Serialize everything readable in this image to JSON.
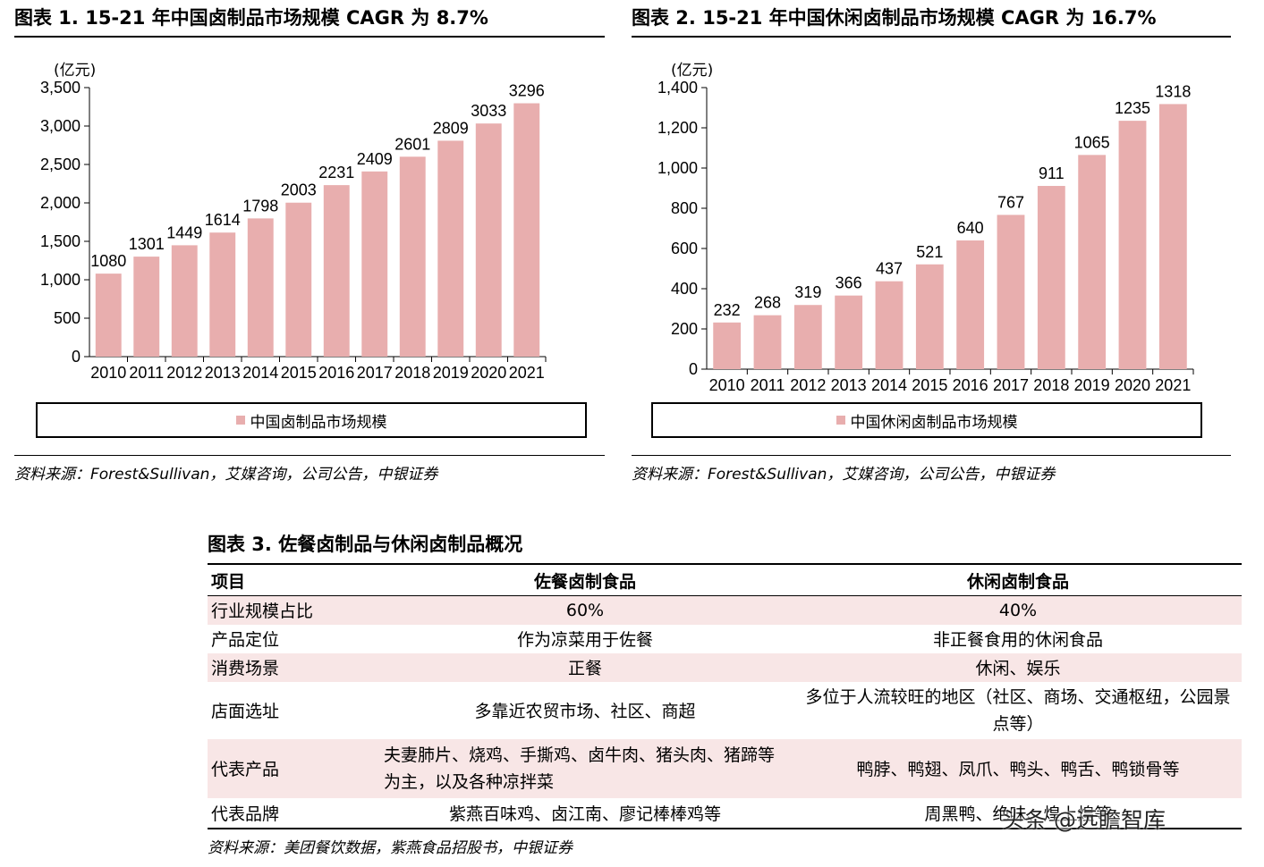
{
  "charts": [
    {
      "title": "图表 1. 15-21 年中国卤制品市场规模 CAGR 为 8.7%",
      "unit": "(亿元)",
      "yticks": [
        "3,500",
        "3,000",
        "2,500",
        "2,000",
        "1,500",
        "1,000",
        "500",
        "0"
      ],
      "legend": "中国卤制品市场规模",
      "source": "资料来源：Forest&Sullivan，艾媒咨询，公司公告，中银证券"
    },
    {
      "title": "图表 2. 15-21 年中国休闲卤制品市场规模 CAGR 为 16.7%",
      "unit": "(亿元)",
      "yticks": [
        "1,400",
        "1,200",
        "1,000",
        "800",
        "600",
        "400",
        "200",
        "0"
      ],
      "legend": "中国休闲卤制品市场规模",
      "source": "资料来源：Forest&Sullivan，艾媒咨询，公司公告，中银证券"
    }
  ],
  "chart_data": [
    {
      "type": "bar",
      "title": "图表 1. 15-21 年中国卤制品市场规模 CAGR 为 8.7%",
      "categories": [
        "2010",
        "2011",
        "2012",
        "2013",
        "2014",
        "2015",
        "2016",
        "2017",
        "2018",
        "2019",
        "2020",
        "2021"
      ],
      "values": [
        1080,
        1301,
        1449,
        1614,
        1798,
        2003,
        2231,
        2409,
        2601,
        2809,
        3033,
        3296
      ],
      "ylim": [
        0,
        3500
      ],
      "ylabel": "(亿元)",
      "xlabel": "",
      "legend": "中国卤制品市场规模",
      "color": "#e8aeae"
    },
    {
      "type": "bar",
      "title": "图表 2. 15-21 年中国休闲卤制品市场规模 CAGR 为 16.7%",
      "categories": [
        "2010",
        "2011",
        "2012",
        "2013",
        "2014",
        "2015",
        "2016",
        "2017",
        "2018",
        "2019",
        "2020",
        "2021"
      ],
      "values": [
        232,
        268,
        319,
        366,
        437,
        521,
        640,
        767,
        911,
        1065,
        1235,
        1318
      ],
      "ylim": [
        0,
        1400
      ],
      "ylabel": "(亿元)",
      "xlabel": "",
      "legend": "中国休闲卤制品市场规模",
      "color": "#e8aeae"
    }
  ],
  "table": {
    "title": "图表 3. 佐餐卤制品与休闲卤制品概况",
    "headers": [
      "项目",
      "佐餐卤制食品",
      "休闲卤制食品"
    ],
    "rows": [
      [
        "行业规模占比",
        "60%",
        "40%"
      ],
      [
        "产品定位",
        "作为凉菜用于佐餐",
        "非正餐食用的休闲食品"
      ],
      [
        "消费场景",
        "正餐",
        "休闲、娱乐"
      ],
      [
        "店面选址",
        "多靠近农贸市场、社区、商超",
        "多位于人流较旺的地区（社区、商场、交通枢纽，公园景点等）"
      ],
      [
        "代表产品",
        "夫妻肺片、烧鸡、手撕鸡、卤牛肉、猪头肉、猪蹄等为主，以及各种凉拌菜",
        "鸭脖、鸭翅、凤爪、鸭头、鸭舌、鸭锁骨等"
      ],
      [
        "代表品牌",
        "紫燕百味鸡、卤江南、廖记棒棒鸡等",
        "周黑鸭、绝味、煌上煌等"
      ]
    ],
    "source": "资料来源：美团餐饮数据，紫燕食品招股书，中银证券"
  },
  "watermark": "头条 @远瞻智库"
}
